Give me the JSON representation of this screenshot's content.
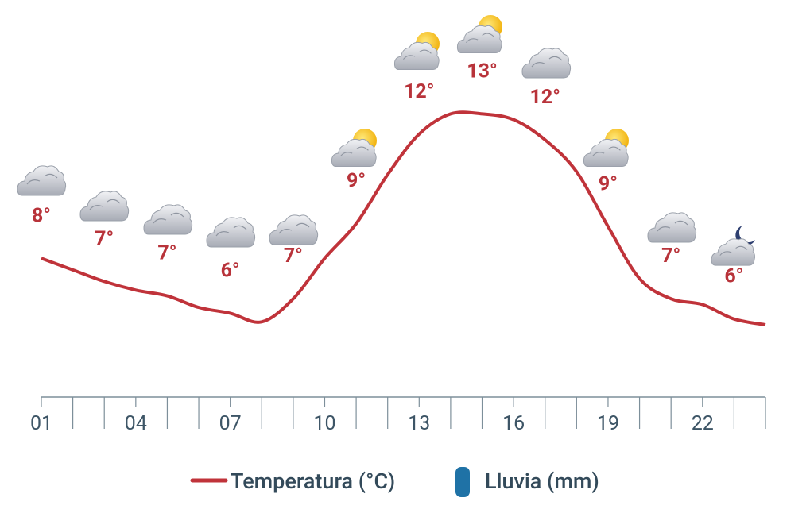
{
  "chart_data": {
    "type": "line",
    "x": [
      1,
      2,
      3,
      4,
      5,
      6,
      7,
      8,
      9,
      10,
      11,
      12,
      13,
      14,
      15,
      16,
      17,
      18,
      19,
      20,
      21,
      22,
      23,
      24
    ],
    "series": [
      {
        "name": "Temperatura (°C)",
        "color": "#c0333a",
        "values": [
          8,
          7.6,
          7.2,
          6.9,
          6.7,
          6.3,
          6.1,
          5.8,
          6.6,
          8,
          9.2,
          10.9,
          12.3,
          13,
          13,
          12.8,
          12.1,
          11,
          9.1,
          7.3,
          6.6,
          6.4,
          5.9,
          5.7
        ],
        "value_labels": [
          "8°",
          null,
          "7°",
          null,
          "7°",
          null,
          "6°",
          null,
          "7°",
          null,
          "9°",
          null,
          "12°",
          null,
          "13°",
          null,
          "12°",
          null,
          "9°",
          null,
          "7°",
          null,
          "6°",
          null
        ]
      },
      {
        "name": "Lluvia (mm)",
        "color": "#1f72a6",
        "values": [
          null,
          null,
          null,
          null,
          null,
          null,
          null,
          null,
          null,
          null,
          null,
          null,
          null,
          null,
          null,
          null,
          null,
          null,
          null,
          null,
          null,
          null,
          null,
          null
        ]
      }
    ],
    "xlim": [
      1,
      24
    ],
    "xticks": [
      {
        "value": 1,
        "label": "01"
      },
      {
        "value": 4,
        "label": "04"
      },
      {
        "value": 7,
        "label": "07"
      },
      {
        "value": 10,
        "label": "10"
      },
      {
        "value": 13,
        "label": "13"
      },
      {
        "value": 16,
        "label": "16"
      },
      {
        "value": 19,
        "label": "19"
      },
      {
        "value": 22,
        "label": "22"
      }
    ],
    "ylim": [
      3.5,
      14
    ]
  }
}
